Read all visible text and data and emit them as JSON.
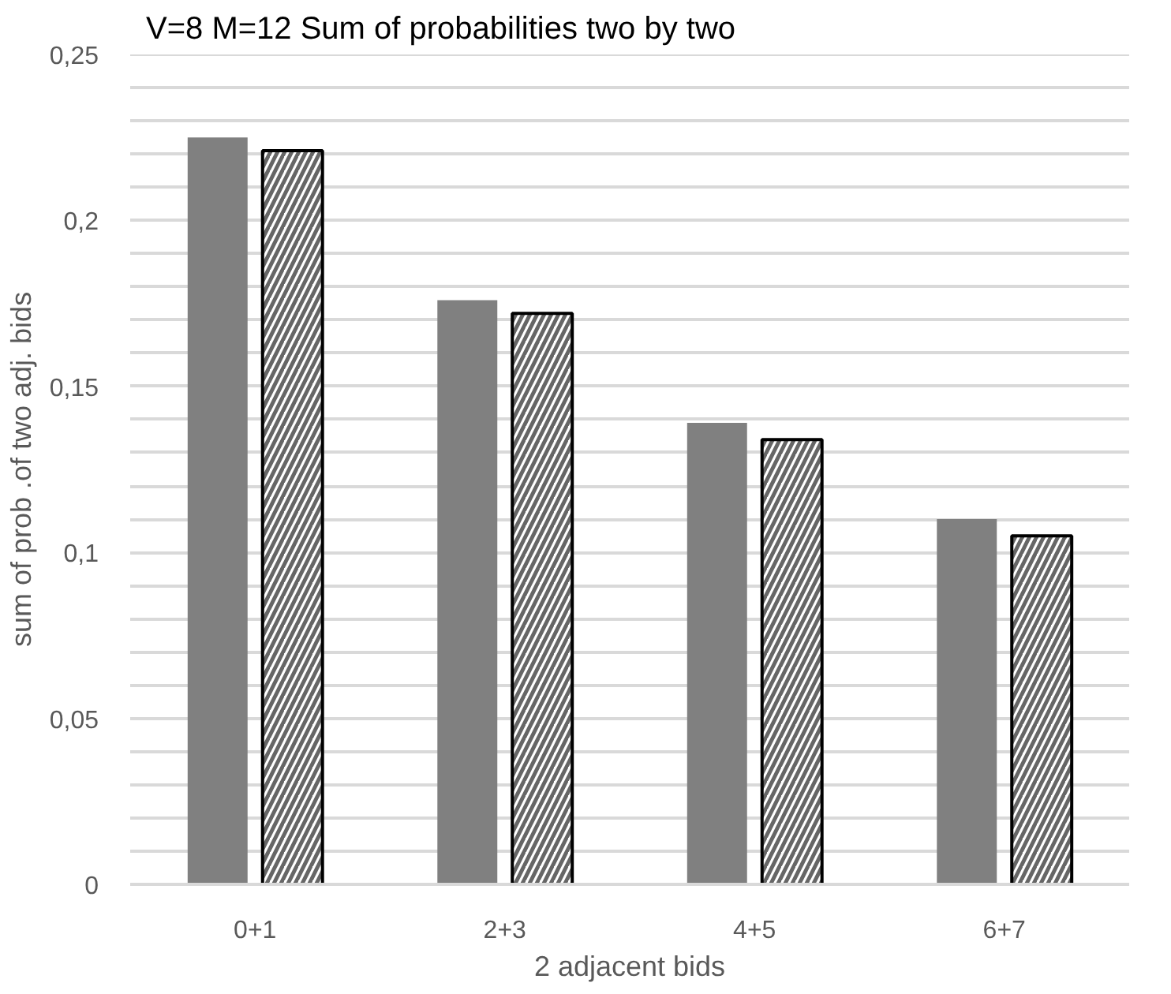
{
  "chart_data": {
    "type": "bar",
    "title": "V=8 M=12 Sum of probabilities two by two",
    "xlabel": "2 adjacent bids",
    "ylabel": "sum of prob .of two adj. bids",
    "categories": [
      "0+1",
      "2+3",
      "4+5",
      "6+7"
    ],
    "series": [
      {
        "color": "#808080",
        "values": [
          0.225,
          0.176,
          0.139,
          0.11
        ]
      },
      {
        "color": "#000000",
        "values": [
          0.221,
          0.172,
          0.134,
          0.105
        ]
      }
    ],
    "ylim": [
      0,
      0.25
    ],
    "yticks": [
      {
        "value": 0,
        "label": "0"
      },
      {
        "value": 0.01,
        "label": null
      },
      {
        "value": 0.02,
        "label": null
      },
      {
        "value": 0.03,
        "label": null
      },
      {
        "value": 0.04,
        "label": null
      },
      {
        "value": 0.05,
        "label": "0,05"
      },
      {
        "value": 0.06,
        "label": null
      },
      {
        "value": 0.07,
        "label": null
      },
      {
        "value": 0.08,
        "label": null
      },
      {
        "value": 0.09,
        "label": null
      },
      {
        "value": 0.1,
        "label": "0,1"
      },
      {
        "value": 0.11,
        "label": null
      },
      {
        "value": 0.12,
        "label": null
      },
      {
        "value": 0.13,
        "label": null
      },
      {
        "value": 0.14,
        "label": null
      },
      {
        "value": 0.15,
        "label": "0,15"
      },
      {
        "value": 0.16,
        "label": null
      },
      {
        "value": 0.17,
        "label": null
      },
      {
        "value": 0.18,
        "label": null
      },
      {
        "value": 0.19,
        "label": null
      },
      {
        "value": 0.2,
        "label": "0,2"
      },
      {
        "value": 0.21,
        "label": null
      },
      {
        "value": 0.22,
        "label": null
      },
      {
        "value": 0.23,
        "label": null
      },
      {
        "value": 0.24,
        "label": null
      },
      {
        "value": 0.25,
        "label": "0,25"
      }
    ],
    "grid": "y"
  }
}
